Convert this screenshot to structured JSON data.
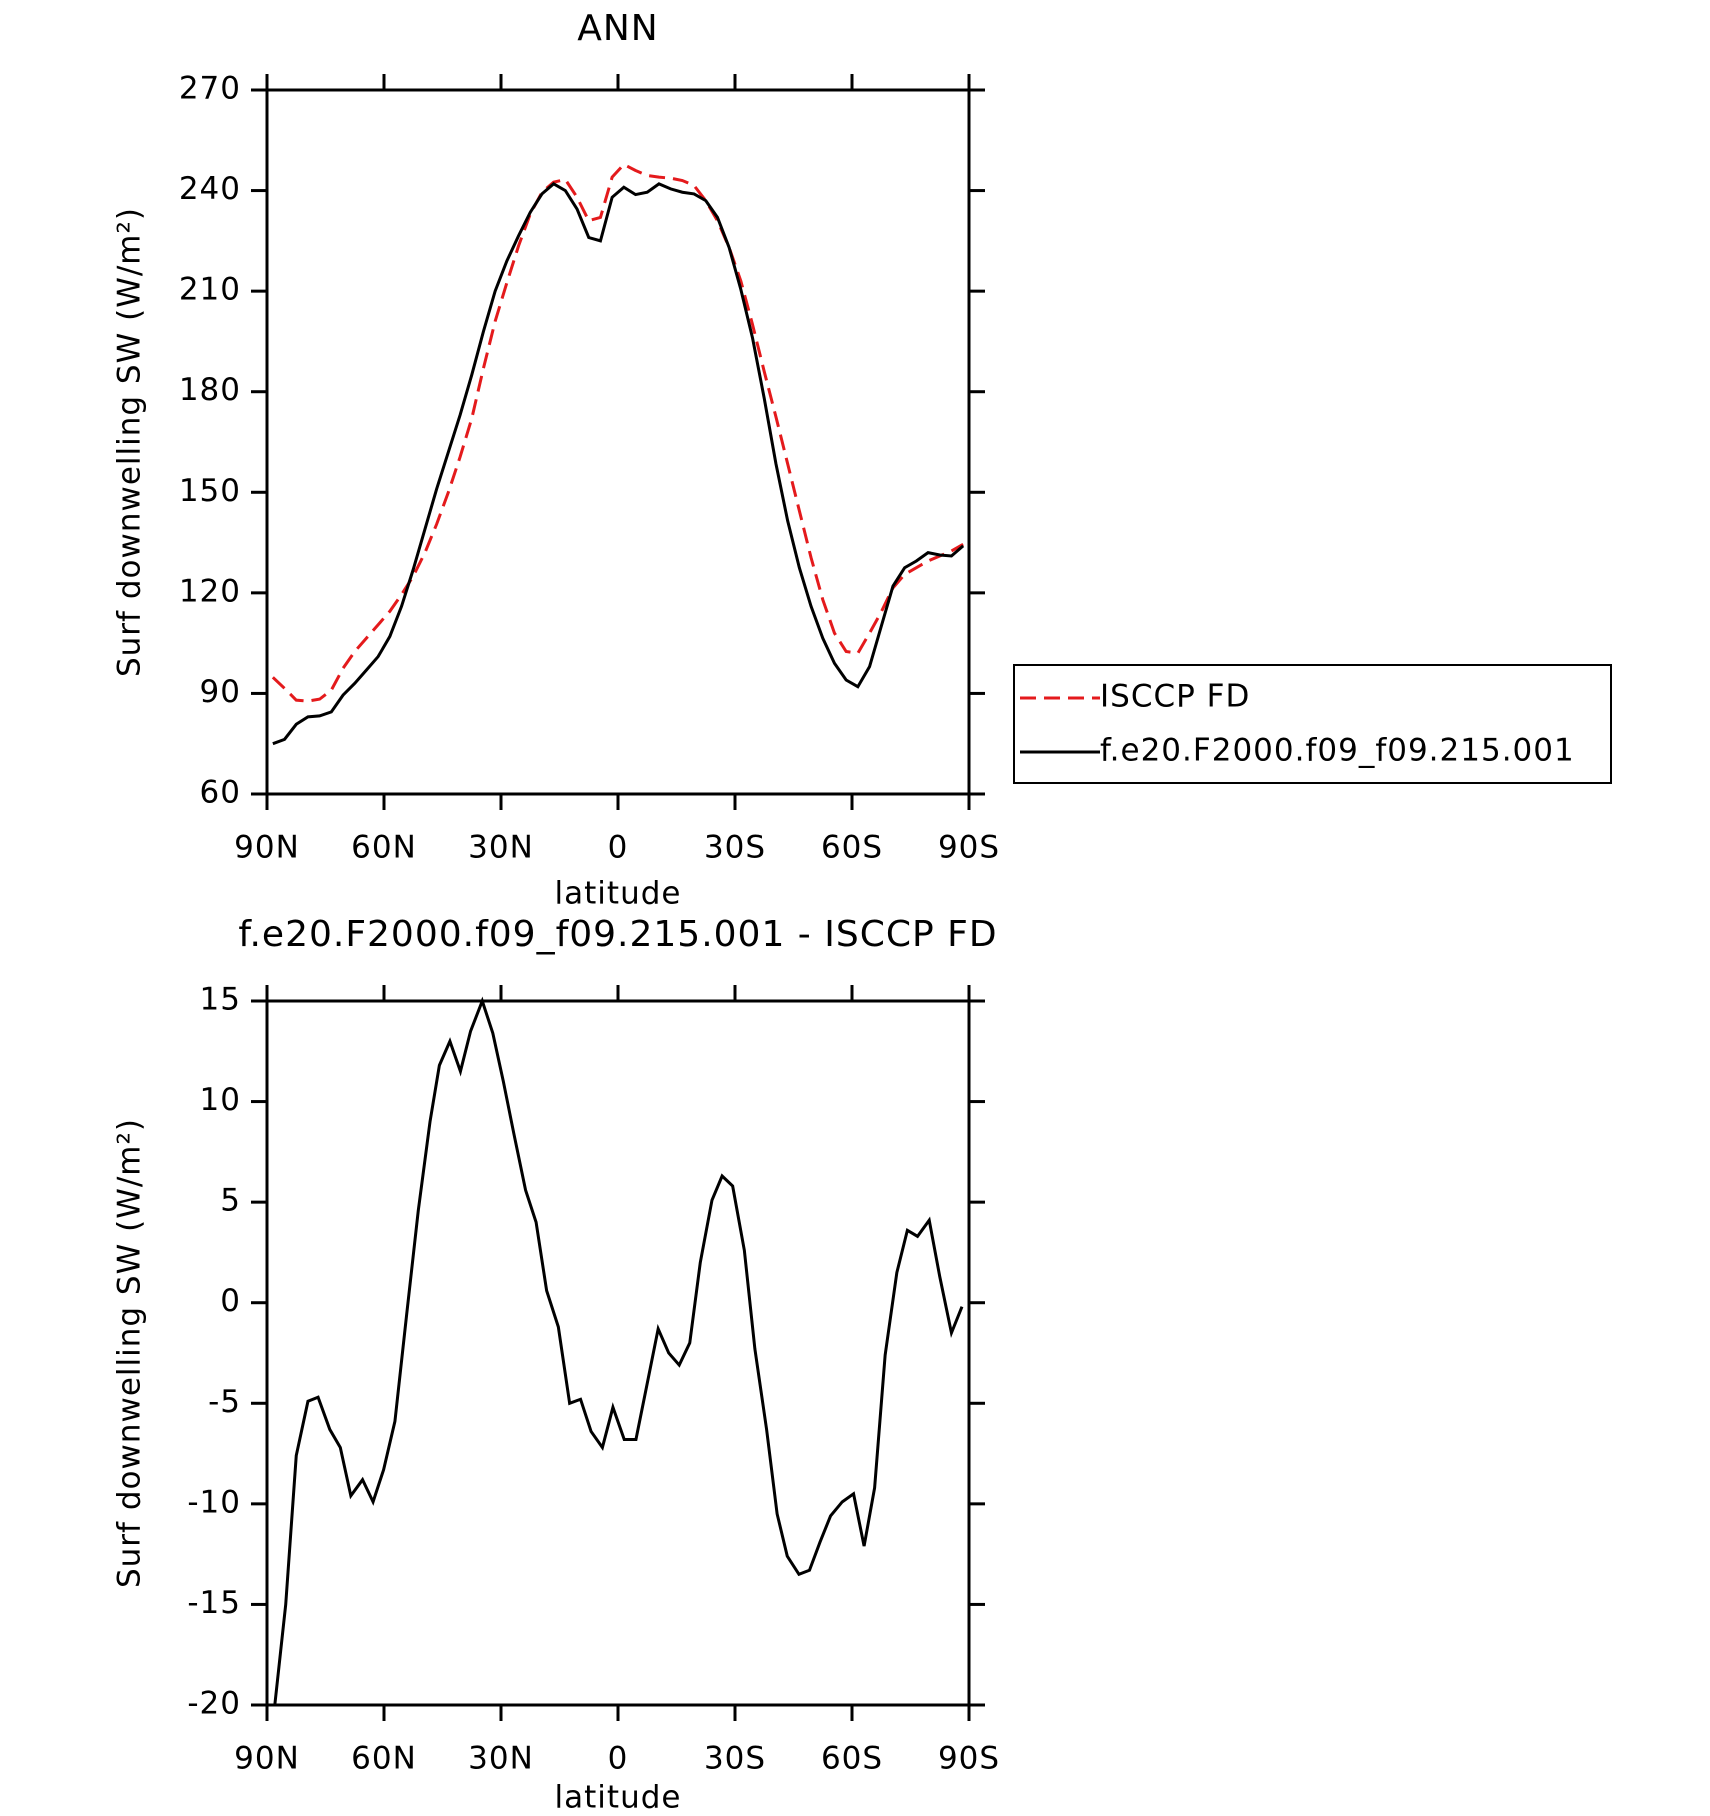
{
  "chart_data": [
    {
      "type": "line",
      "title": "ANN",
      "xlabel": "latitude",
      "ylabel": "Surf downwelling SW (W/m²)",
      "x": [
        88.5,
        85.5,
        82.5,
        79.5,
        76.5,
        73.5,
        70.5,
        67.5,
        64.5,
        61.5,
        58.5,
        55.5,
        52.5,
        49.5,
        46.5,
        43.5,
        40.5,
        37.5,
        34.5,
        31.5,
        28.5,
        25.5,
        22.5,
        19.5,
        16.5,
        13.5,
        10.5,
        7.5,
        4.5,
        1.5,
        -1.5,
        -4.5,
        -7.5,
        -10.5,
        -13.5,
        -16.5,
        -19.5,
        -22.5,
        -25.5,
        -28.5,
        -31.5,
        -34.5,
        -37.5,
        -40.5,
        -43.5,
        -46.5,
        -49.5,
        -52.5,
        -55.5,
        -58.5,
        -61.5,
        -64.5,
        -67.5,
        -70.5,
        -73.5,
        -76.5,
        -79.5,
        -82.5,
        -85.5,
        -88.5
      ],
      "series": [
        {
          "name": "ISCCP FD",
          "color": "#e41a1c",
          "line_style": "dashed",
          "values": [
            94.8,
            91.5,
            88,
            87.7,
            88.3,
            91,
            97.5,
            102.5,
            106.5,
            110.5,
            114.5,
            119.5,
            125,
            132,
            140.5,
            150,
            160.5,
            172,
            187,
            201,
            212.5,
            223.5,
            233,
            239.5,
            242.5,
            243.3,
            238,
            231,
            232,
            244,
            247.8,
            246,
            244.5,
            244,
            243.7,
            243,
            241.5,
            237,
            231,
            223,
            213,
            200,
            186,
            172.5,
            158.5,
            144.5,
            130.5,
            118,
            108,
            102.5,
            102,
            108,
            114.3,
            121.5,
            125.5,
            127.5,
            129.5,
            131,
            132.5,
            134.5
          ]
        },
        {
          "name": "f.e20.F2000.f09_f09.215.001",
          "color": "#000000",
          "line_style": "solid",
          "values": [
            75,
            76.3,
            80.8,
            83,
            83.3,
            84.5,
            89.5,
            93,
            97,
            101,
            107,
            116,
            127,
            139,
            151,
            162,
            173,
            185,
            198,
            210,
            219,
            226.5,
            233.5,
            239,
            242,
            240,
            234.5,
            226,
            225,
            238,
            241,
            238.8,
            239.5,
            242,
            240.5,
            239.5,
            239,
            237,
            232,
            223,
            210.5,
            196,
            178,
            158.5,
            141.5,
            127.5,
            116,
            106.5,
            99,
            94,
            92,
            98,
            110,
            122,
            127.5,
            129.5,
            132,
            131.3,
            131,
            134
          ]
        }
      ],
      "xlim": [
        90,
        -90
      ],
      "xticks": [
        {
          "value": 90,
          "label": "90N"
        },
        {
          "value": 60,
          "label": "60N"
        },
        {
          "value": 30,
          "label": "30N"
        },
        0,
        {
          "value": -30,
          "label": "30S"
        },
        {
          "value": -60,
          "label": "60S"
        },
        {
          "value": -90,
          "label": "90S"
        }
      ],
      "ylim": [
        60,
        270
      ],
      "yticks": [
        60,
        90,
        120,
        150,
        180,
        210,
        240,
        270
      ],
      "legend": "right"
    },
    {
      "type": "line",
      "title": "f.e20.F2000.f09_f09.215.001 - ISCCP FD",
      "xlabel": "latitude",
      "ylabel": "Surf downwelling SW (W/m²)",
      "x": [
        88,
        85.2,
        82.5,
        79.5,
        76.9,
        73.9,
        71.2,
        68.5,
        65.5,
        62.8,
        60.1,
        57.2,
        54.2,
        51.2,
        48.2,
        45.8,
        43.1,
        40.4,
        37.8,
        34.8,
        32.1,
        29.4,
        26.7,
        23.7,
        21,
        18.3,
        15.3,
        12.4,
        9.6,
        6.9,
        4,
        1.3,
        -1.6,
        -4.6,
        -7.3,
        -10.3,
        -13,
        -15.7,
        -18.4,
        -21.1,
        -24.1,
        -26.7,
        -29.4,
        -32.4,
        -35.1,
        -38.1,
        -40.8,
        -43.4,
        -46.4,
        -49.1,
        -51.8,
        -54.5,
        -57.5,
        -60.4,
        -63.1,
        -65.8,
        -68.5,
        -71.5,
        -74.2,
        -76.8,
        -79.8,
        -82.5,
        -85.5,
        -88.2
      ],
      "series": [
        {
          "color": "#000000",
          "line_style": "solid",
          "values": [
            -20,
            -15,
            -7.6,
            -4.9,
            -4.7,
            -6.3,
            -7.2,
            -9.6,
            -8.8,
            -9.9,
            -8.3,
            -5.9,
            -0.6,
            4.6,
            9,
            11.8,
            13,
            11.5,
            13.5,
            15,
            13.4,
            11,
            8.4,
            5.6,
            4,
            0.6,
            -1.2,
            -5,
            -4.8,
            -6.4,
            -7.2,
            -5.2,
            -6.8,
            -6.8,
            -4.2,
            -1.3,
            -2.5,
            -3.1,
            -2,
            2,
            5.1,
            6.3,
            5.8,
            2.6,
            -2.3,
            -6.3,
            -10.5,
            -12.6,
            -13.5,
            -13.3,
            -11.9,
            -10.6,
            -9.9,
            -9.5,
            -12.1,
            -9.2,
            -2.6,
            1.5,
            3.6,
            3.3,
            4.1,
            1.3,
            -1.5,
            -0.2
          ]
        }
      ],
      "xlim": [
        90,
        -90
      ],
      "xticks": [
        {
          "value": 90,
          "label": "90N"
        },
        {
          "value": 60,
          "label": "60N"
        },
        {
          "value": 30,
          "label": "30N"
        },
        0,
        {
          "value": -30,
          "label": "30S"
        },
        {
          "value": -60,
          "label": "60S"
        },
        {
          "value": -90,
          "label": "90S"
        }
      ],
      "ylim": [
        -20,
        15
      ],
      "yticks": [
        -20,
        -15,
        -10,
        -5,
        0,
        5,
        10,
        15
      ]
    }
  ]
}
